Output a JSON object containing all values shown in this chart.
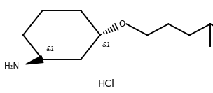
{
  "background_color": "#ffffff",
  "line_color": "#000000",
  "line_width": 1.4,
  "font_size_label": 8.5,
  "font_size_hcl": 10,
  "hcl_text": "HCl",
  "label_nh2": "H₂N",
  "label_o": "O",
  "label_amp1": "&1",
  "label_amp2": "&1",
  "fig_width": 3.04,
  "fig_height": 1.33,
  "dpi": 100
}
